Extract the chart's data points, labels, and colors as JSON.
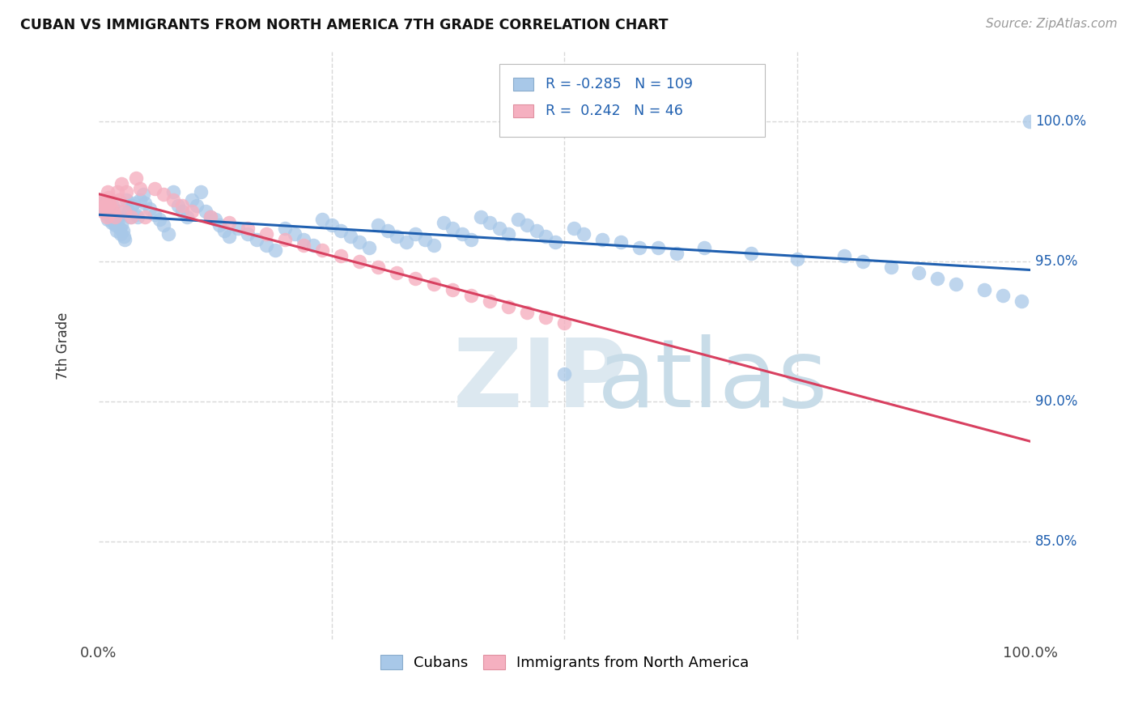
{
  "title": "CUBAN VS IMMIGRANTS FROM NORTH AMERICA 7TH GRADE CORRELATION CHART",
  "source": "Source: ZipAtlas.com",
  "ylabel": "7th Grade",
  "watermark_zip": "ZIP",
  "watermark_atlas": "atlas",
  "blue_R": -0.285,
  "blue_N": 109,
  "pink_R": 0.242,
  "pink_N": 46,
  "ytick_values": [
    0.85,
    0.9,
    0.95,
    1.0
  ],
  "ytick_labels": [
    "85.0%",
    "90.0%",
    "95.0%",
    "100.0%"
  ],
  "xlim": [
    0.0,
    1.0
  ],
  "ylim": [
    0.815,
    1.025
  ],
  "blue_color": "#a8c8e8",
  "pink_color": "#f5b0c0",
  "blue_line_color": "#2060b0",
  "pink_line_color": "#d84060",
  "legend_label_blue": "Cubans",
  "legend_label_pink": "Immigrants from North America",
  "background_color": "#ffffff",
  "grid_color": "#d8d8d8",
  "blue_scatter_x": [
    0.003,
    0.005,
    0.006,
    0.007,
    0.008,
    0.009,
    0.01,
    0.011,
    0.012,
    0.013,
    0.014,
    0.015,
    0.016,
    0.017,
    0.018,
    0.019,
    0.02,
    0.021,
    0.022,
    0.023,
    0.024,
    0.025,
    0.026,
    0.027,
    0.028,
    0.03,
    0.032,
    0.034,
    0.036,
    0.038,
    0.04,
    0.042,
    0.045,
    0.048,
    0.05,
    0.055,
    0.06,
    0.065,
    0.07,
    0.075,
    0.08,
    0.085,
    0.09,
    0.095,
    0.1,
    0.105,
    0.11,
    0.115,
    0.12,
    0.125,
    0.13,
    0.135,
    0.14,
    0.15,
    0.16,
    0.17,
    0.18,
    0.19,
    0.2,
    0.21,
    0.22,
    0.23,
    0.24,
    0.25,
    0.26,
    0.27,
    0.28,
    0.29,
    0.3,
    0.31,
    0.32,
    0.33,
    0.34,
    0.35,
    0.36,
    0.37,
    0.38,
    0.39,
    0.4,
    0.41,
    0.42,
    0.43,
    0.44,
    0.45,
    0.46,
    0.47,
    0.48,
    0.49,
    0.5,
    0.51,
    0.52,
    0.54,
    0.56,
    0.58,
    0.6,
    0.62,
    0.65,
    0.7,
    0.75,
    0.8,
    0.82,
    0.85,
    0.88,
    0.9,
    0.92,
    0.95,
    0.97,
    0.99,
    0.999
  ],
  "blue_scatter_y": [
    0.972,
    0.97,
    0.968,
    0.969,
    0.971,
    0.967,
    0.965,
    0.969,
    0.968,
    0.966,
    0.964,
    0.97,
    0.966,
    0.964,
    0.963,
    0.961,
    0.966,
    0.965,
    0.968,
    0.962,
    0.96,
    0.963,
    0.961,
    0.959,
    0.958,
    0.972,
    0.968,
    0.966,
    0.97,
    0.971,
    0.967,
    0.966,
    0.972,
    0.974,
    0.971,
    0.969,
    0.967,
    0.965,
    0.963,
    0.96,
    0.975,
    0.97,
    0.968,
    0.966,
    0.972,
    0.97,
    0.975,
    0.968,
    0.966,
    0.965,
    0.963,
    0.961,
    0.959,
    0.962,
    0.96,
    0.958,
    0.956,
    0.954,
    0.962,
    0.96,
    0.958,
    0.956,
    0.965,
    0.963,
    0.961,
    0.959,
    0.957,
    0.955,
    0.963,
    0.961,
    0.959,
    0.957,
    0.96,
    0.958,
    0.956,
    0.964,
    0.962,
    0.96,
    0.958,
    0.966,
    0.964,
    0.962,
    0.96,
    0.965,
    0.963,
    0.961,
    0.959,
    0.957,
    0.91,
    0.962,
    0.96,
    0.958,
    0.957,
    0.955,
    0.955,
    0.953,
    0.955,
    0.953,
    0.951,
    0.952,
    0.95,
    0.948,
    0.946,
    0.944,
    0.942,
    0.94,
    0.938,
    0.936,
    1.0
  ],
  "pink_scatter_x": [
    0.003,
    0.005,
    0.006,
    0.007,
    0.008,
    0.009,
    0.01,
    0.011,
    0.012,
    0.014,
    0.016,
    0.018,
    0.02,
    0.022,
    0.025,
    0.028,
    0.03,
    0.035,
    0.04,
    0.045,
    0.05,
    0.06,
    0.07,
    0.08,
    0.09,
    0.1,
    0.12,
    0.14,
    0.16,
    0.18,
    0.2,
    0.22,
    0.24,
    0.26,
    0.28,
    0.3,
    0.32,
    0.34,
    0.36,
    0.38,
    0.4,
    0.42,
    0.44,
    0.46,
    0.48,
    0.5
  ],
  "pink_scatter_y": [
    0.972,
    0.968,
    0.972,
    0.97,
    0.968,
    0.966,
    0.975,
    0.973,
    0.971,
    0.969,
    0.968,
    0.966,
    0.975,
    0.972,
    0.978,
    0.968,
    0.975,
    0.966,
    0.98,
    0.976,
    0.966,
    0.976,
    0.974,
    0.972,
    0.97,
    0.968,
    0.966,
    0.964,
    0.962,
    0.96,
    0.958,
    0.956,
    0.954,
    0.952,
    0.95,
    0.948,
    0.946,
    0.944,
    0.942,
    0.94,
    0.938,
    0.936,
    0.934,
    0.932,
    0.93,
    0.928
  ]
}
